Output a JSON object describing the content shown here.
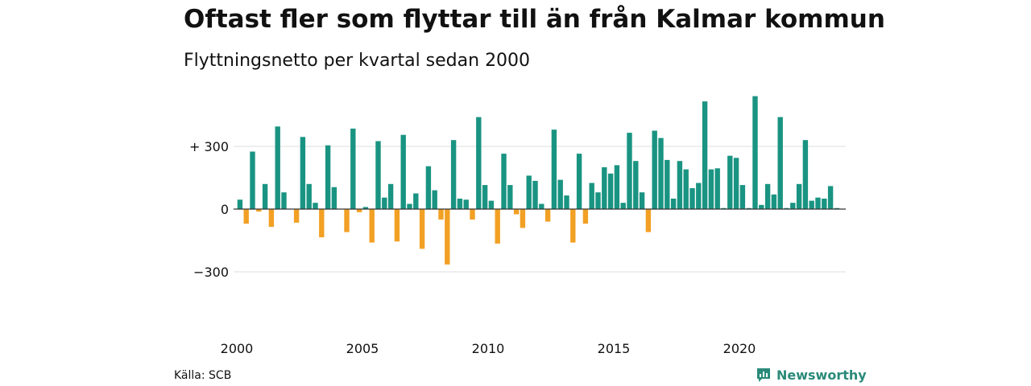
{
  "title": "Oftast fler som flyttar till än från Kalmar kommun",
  "subtitle": "Flyttningsnetto per kvartal sedan 2000",
  "source": "Källa: SCB",
  "brand": "Newsworthy",
  "colors": {
    "positive": "#1a9482",
    "negative": "#f2a024",
    "grid": "#dddddd",
    "zero_line": "#333333",
    "text": "#111111",
    "brand": "#2a8a7a"
  },
  "chart_data": {
    "type": "bar",
    "title": "Oftast fler som flyttar till än från Kalmar kommun",
    "subtitle": "Flyttningsnetto per kvartal sedan 2000",
    "start_year": 2000,
    "periods_per_year": 4,
    "ylim": [
      -500,
      580
    ],
    "yticks": [
      {
        "value": 300,
        "label": "+ 300"
      },
      {
        "value": 0,
        "label": "0"
      },
      {
        "value": -300,
        "label": "−300"
      }
    ],
    "xticks": [
      {
        "value": 2000,
        "label": "2000"
      },
      {
        "value": 2005,
        "label": "2005"
      },
      {
        "value": 2010,
        "label": "2010"
      },
      {
        "value": 2015,
        "label": "2015"
      },
      {
        "value": 2020,
        "label": "2020"
      }
    ],
    "grid": true,
    "values": [
      45,
      -70,
      275,
      -12,
      120,
      -85,
      395,
      80,
      0,
      -65,
      345,
      120,
      30,
      -135,
      305,
      105,
      0,
      -110,
      385,
      -15,
      10,
      -160,
      325,
      55,
      120,
      -155,
      355,
      25,
      75,
      -190,
      205,
      90,
      -50,
      -265,
      330,
      50,
      45,
      -50,
      440,
      115,
      40,
      -165,
      265,
      115,
      -25,
      -90,
      160,
      135,
      25,
      -60,
      380,
      140,
      65,
      -160,
      265,
      -70,
      125,
      80,
      200,
      170,
      210,
      30,
      365,
      230,
      80,
      -110,
      375,
      340,
      235,
      50,
      230,
      190,
      100,
      125,
      515,
      190,
      195,
      5,
      255,
      245,
      115,
      5,
      540,
      20,
      120,
      70,
      440,
      5,
      30,
      120,
      330,
      40,
      55,
      50,
      110,
      5,
      0
    ]
  }
}
